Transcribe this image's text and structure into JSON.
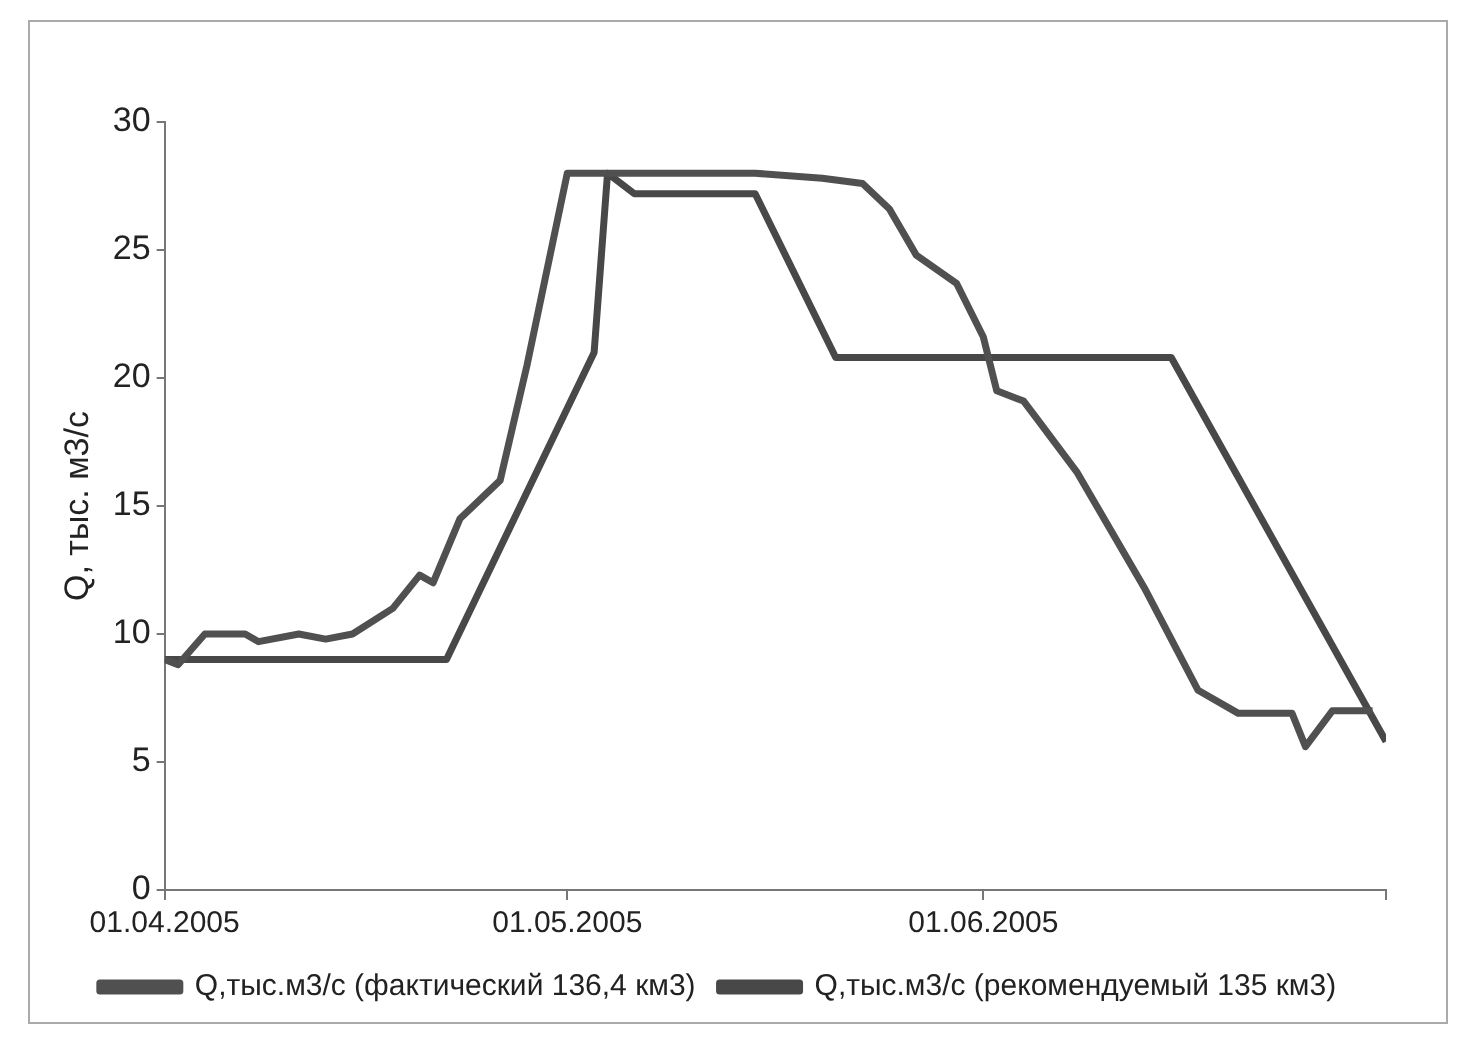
{
  "chart_data": {
    "type": "line",
    "ylabel": "Q, тыс. м3/с",
    "xlim": [
      "2005-04-01",
      "2005-07-01"
    ],
    "xticks": [
      {
        "value": "2005-04-01",
        "label": "01.04.2005"
      },
      {
        "value": "2005-05-01",
        "label": "01.05.2005"
      },
      {
        "value": "2005-06-01",
        "label": "01.06.2005"
      },
      {
        "value": "2005-07-01",
        "label": null
      }
    ],
    "ylim": [
      0,
      30
    ],
    "yticks": [
      0,
      5,
      10,
      15,
      20,
      25,
      30
    ],
    "grid": false,
    "legend": "bottom",
    "marker": "none",
    "line_style": "solid",
    "series": [
      {
        "name": "Q,тыс.м3/с (фактический 136,4 км3)",
        "color": "#505050",
        "x": [
          "2005-04-01",
          "2005-04-02",
          "2005-04-04",
          "2005-04-07",
          "2005-04-08",
          "2005-04-11",
          "2005-04-13",
          "2005-04-15",
          "2005-04-18",
          "2005-04-20",
          "2005-04-21",
          "2005-04-23",
          "2005-04-26",
          "2005-04-28",
          "2005-05-01",
          "2005-05-05",
          "2005-05-10",
          "2005-05-15",
          "2005-05-20",
          "2005-05-23",
          "2005-05-25",
          "2005-05-27",
          "2005-05-30",
          "2005-06-01",
          "2005-06-02",
          "2005-06-04",
          "2005-06-05",
          "2005-06-08",
          "2005-06-13",
          "2005-06-17",
          "2005-06-20",
          "2005-06-24",
          "2005-06-25",
          "2005-06-27",
          "2005-06-29",
          "2005-06-30"
        ],
        "values": [
          9,
          8.8,
          10,
          10,
          9.7,
          10,
          9.8,
          10,
          11,
          12.3,
          12,
          14.5,
          16,
          20.5,
          28,
          28,
          28,
          28,
          27.8,
          27.6,
          26.6,
          24.8,
          23.7,
          21.6,
          19.5,
          19.1,
          18.4,
          16.3,
          11.8,
          7.8,
          6.9,
          6.9,
          5.6,
          7,
          7,
          7
        ]
      },
      {
        "name": "Q,тыс.м3/с (рекомендуемый 135 км3)",
        "color": "#484848",
        "x": [
          "2005-04-01",
          "2005-04-22",
          "2005-05-03",
          "2005-05-04",
          "2005-05-06",
          "2005-05-15",
          "2005-05-21",
          "2005-06-15",
          "2005-07-01"
        ],
        "values": [
          9,
          9,
          21,
          28,
          27.2,
          27.2,
          20.8,
          20.8,
          5.8
        ]
      }
    ]
  }
}
